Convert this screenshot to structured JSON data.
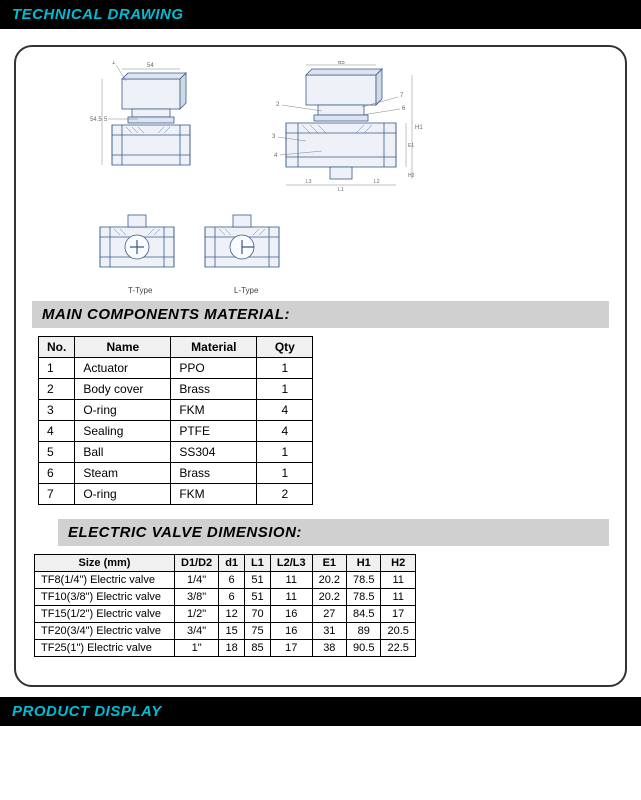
{
  "header": {
    "title": "TECHNICAL DRAWING"
  },
  "footer": {
    "title": "PRODUCT DISPLAY"
  },
  "drawings": {
    "label_t": "T-Type",
    "label_l": "L-Type"
  },
  "components": {
    "title": "MAIN COMPONENTS MATERIAL:",
    "columns": [
      "No.",
      "Name",
      "Material",
      "Qty"
    ],
    "rows": [
      [
        "1",
        "Actuator",
        "PPO",
        "1"
      ],
      [
        "2",
        "Body cover",
        "Brass",
        "1"
      ],
      [
        "3",
        "O-ring",
        "FKM",
        "4"
      ],
      [
        "4",
        "Sealing",
        "PTFE",
        "4"
      ],
      [
        "5",
        "Ball",
        "SS304",
        "1"
      ],
      [
        "6",
        "Steam",
        "Brass",
        "1"
      ],
      [
        "7",
        "O-ring",
        "FKM",
        "2"
      ]
    ]
  },
  "dimensions": {
    "title": "ELECTRIC VALVE DIMENSION:",
    "columns": [
      "Size (mm)",
      "D1/D2",
      "d1",
      "L1",
      "L2/L3",
      "E1",
      "H1",
      "H2"
    ],
    "rows": [
      [
        "TF8(1/4\") Electric valve",
        "1/4\"",
        "6",
        "51",
        "11",
        "20.2",
        "78.5",
        "11"
      ],
      [
        "TF10(3/8\") Electric valve",
        "3/8\"",
        "6",
        "51",
        "11",
        "20.2",
        "78.5",
        "11"
      ],
      [
        "TF15(1/2\") Electric valve",
        "1/2\"",
        "12",
        "70",
        "16",
        "27",
        "84.5",
        "17"
      ],
      [
        "TF20(3/4\") Electric valve",
        "3/4\"",
        "15",
        "75",
        "16",
        "31",
        "89",
        "20.5"
      ],
      [
        "TF25(1\") Electric valve",
        "1\"",
        "18",
        "85",
        "17",
        "38",
        "90.5",
        "22.5"
      ]
    ]
  },
  "styling": {
    "header_bg": "#000000",
    "header_text": "#00bcd4",
    "section_bg": "#d0d0d0",
    "border_color": "#000000",
    "frame_border": "#333333",
    "frame_radius": 18
  }
}
